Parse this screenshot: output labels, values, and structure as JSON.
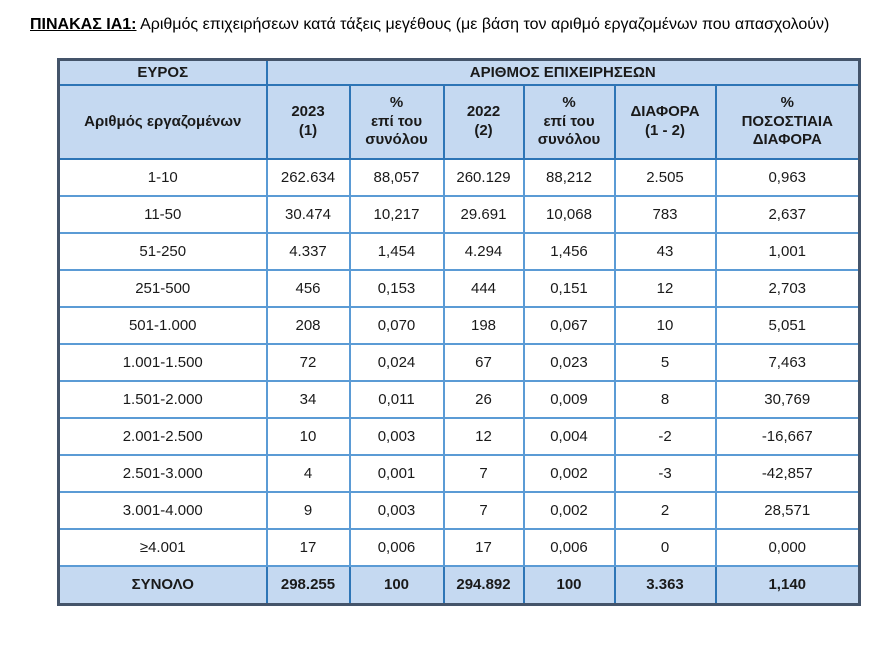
{
  "caption": {
    "label": "ΠΙΝΑΚΑΣ ΙΑ1:",
    "text": " Αριθμός επιχειρήσεων κατά τάξεις μεγέθους (με βάση τον αριθμό εργαζομένων που απασχολούν)"
  },
  "table": {
    "header_group": {
      "left": "ΕΥΡΟΣ",
      "right": "ΑΡΙΘΜΟΣ ΕΠΙΧΕΙΡΗΣΕΩΝ"
    },
    "columns": [
      "Αριθμός εργαζομένων",
      "2023\n(1)",
      "%\nεπί του\nσυνόλου",
      "2022\n(2)",
      "%\nεπί του\nσυνόλου",
      "ΔΙΑΦΟΡΑ\n(1 - 2)",
      "%\nΠΟΣΟΣΤΙΑΙΑ\nΔΙΑΦΟΡΑ"
    ],
    "rows": [
      [
        "1-10",
        "262.634",
        "88,057",
        "260.129",
        "88,212",
        "2.505",
        "0,963"
      ],
      [
        "11-50",
        "30.474",
        "10,217",
        "29.691",
        "10,068",
        "783",
        "2,637"
      ],
      [
        "51-250",
        "4.337",
        "1,454",
        "4.294",
        "1,456",
        "43",
        "1,001"
      ],
      [
        "251-500",
        "456",
        "0,153",
        "444",
        "0,151",
        "12",
        "2,703"
      ],
      [
        "501-1.000",
        "208",
        "0,070",
        "198",
        "0,067",
        "10",
        "5,051"
      ],
      [
        "1.001-1.500",
        "72",
        "0,024",
        "67",
        "0,023",
        "5",
        "7,463"
      ],
      [
        "1.501-2.000",
        "34",
        "0,011",
        "26",
        "0,009",
        "8",
        "30,769"
      ],
      [
        "2.001-2.500",
        "10",
        "0,003",
        "12",
        "0,004",
        "-2",
        "-16,667"
      ],
      [
        "2.501-3.000",
        "4",
        "0,001",
        "7",
        "0,002",
        "-3",
        "-42,857"
      ],
      [
        "3.001-4.000",
        "9",
        "0,003",
        "7",
        "0,002",
        "2",
        "28,571"
      ],
      [
        "≥4.001",
        "17",
        "0,006",
        "17",
        "0,006",
        "0",
        "0,000"
      ]
    ],
    "totals": [
      "ΣΥΝΟΛΟ",
      "298.255",
      "100",
      "294.892",
      "100",
      "3.363",
      "1,140"
    ]
  },
  "colors": {
    "header_bg": "#C5D9F1",
    "grid_border": "#5B9BD5",
    "header_border": "#2E75B6",
    "outer_border": "#44546A",
    "text_color": "#1a1a1a"
  }
}
